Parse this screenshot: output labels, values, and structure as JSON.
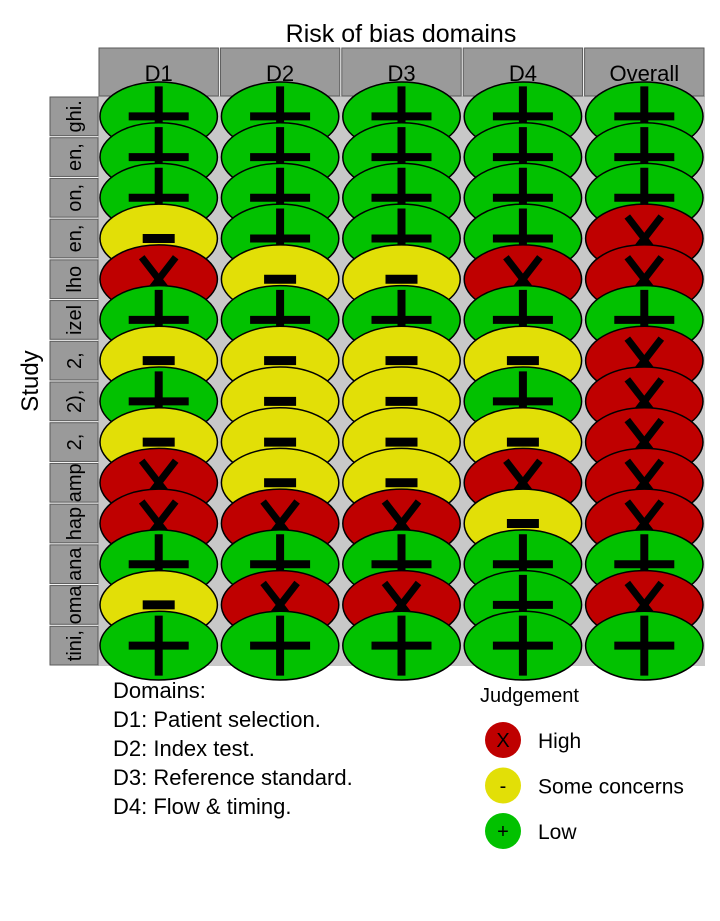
{
  "chart_data": {
    "type": "table",
    "title": "Risk of bias domains",
    "row_label": "Study",
    "columns": [
      "D1",
      "D2",
      "D3",
      "D4",
      "Overall"
    ],
    "studies": [
      "ghi.",
      "en,",
      "on,",
      "en,",
      "lho",
      "izel",
      "2,",
      "2),",
      "2,",
      "amp",
      "hap",
      "ana",
      "oma",
      "tini,"
    ],
    "judgements": [
      [
        "+",
        "+",
        "+",
        "+",
        "+"
      ],
      [
        "+",
        "+",
        "+",
        "+",
        "+"
      ],
      [
        "+",
        "+",
        "+",
        "+",
        "+"
      ],
      [
        "-",
        "+",
        "+",
        "+",
        "X"
      ],
      [
        "X",
        "-",
        "-",
        "X",
        "X"
      ],
      [
        "+",
        "+",
        "+",
        "+",
        "+"
      ],
      [
        "-",
        "-",
        "-",
        "-",
        "X"
      ],
      [
        "+",
        "-",
        "-",
        "+",
        "X"
      ],
      [
        "-",
        "-",
        "-",
        "-",
        "X"
      ],
      [
        "X",
        "-",
        "-",
        "X",
        "X"
      ],
      [
        "X",
        "X",
        "X",
        "-",
        "X"
      ],
      [
        "+",
        "+",
        "+",
        "+",
        "+"
      ],
      [
        "-",
        "X",
        "X",
        "+",
        "X"
      ],
      [
        "+",
        "+",
        "+",
        "+",
        "+"
      ]
    ],
    "domains_heading": "Domains:",
    "domains": [
      "D1: Patient selection.",
      "D2: Index test.",
      "D3: Reference standard.",
      "D4: Flow & timing."
    ],
    "legend": {
      "title": "Judgement",
      "items": [
        {
          "symbol": "X",
          "label": "High",
          "color": "#BF0000"
        },
        {
          "symbol": "-",
          "label": "Some concerns",
          "color": "#E2DF07"
        },
        {
          "symbol": "+",
          "label": "Low",
          "color": "#02C100"
        }
      ]
    },
    "colors": {
      "header_fill": "#9A9A9A",
      "grid_background": "#C8C8C8"
    }
  }
}
